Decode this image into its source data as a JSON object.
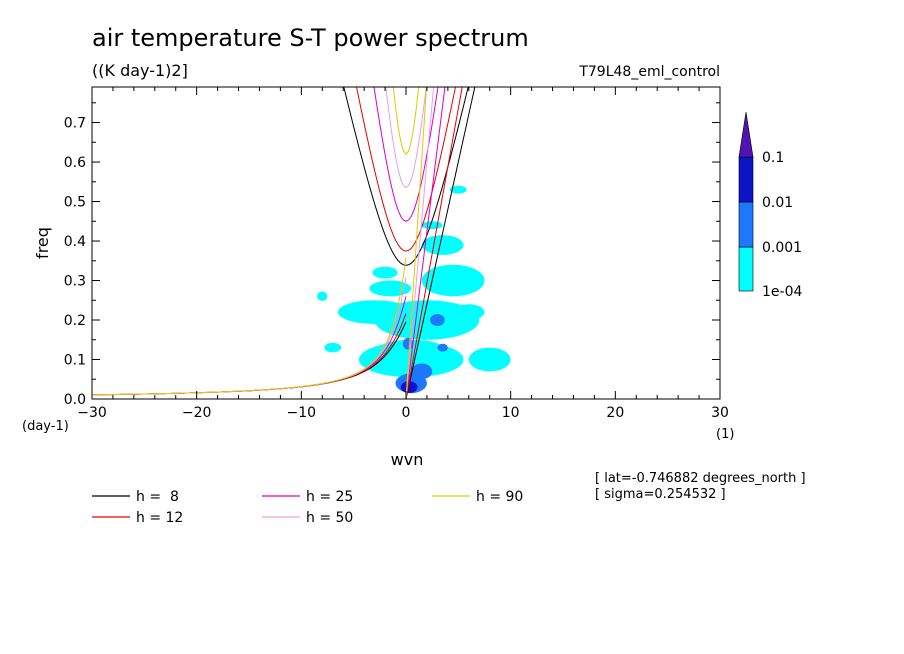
{
  "chart_data": {
    "type": "contour",
    "title": "air temperature S-T power spectrum",
    "units": "((K day-1)2]",
    "experiment": "T79L48_eml_control",
    "xlabel": "wvn",
    "ylabel": "freq",
    "xunit": "(1)",
    "yunit": "(day-1)",
    "xlim": [
      -30,
      30
    ],
    "ylim": [
      0,
      0.79
    ],
    "xticks": [
      "-30",
      "-20",
      "-10",
      "0",
      "10",
      "20",
      "30"
    ],
    "yticks": [
      "0.0",
      "0.1",
      "0.2",
      "0.3",
      "0.4",
      "0.5",
      "0.6",
      "0.7"
    ],
    "info": [
      "[ lat=-0.746882 degrees_north ]",
      "[ sigma=0.254532 ]"
    ],
    "colorbar": {
      "levels": [
        "1e-04",
        "0.001",
        "0.01",
        "0.1"
      ],
      "colors": [
        "#00ffff",
        "#1e78ff",
        "#0a14c8",
        "#5014b4"
      ]
    },
    "dispersion_curves": [
      {
        "label": "h =  8",
        "h": 8,
        "color": "#000000"
      },
      {
        "label": "h = 12",
        "h": 12,
        "color": "#e60000"
      },
      {
        "label": "h = 25",
        "h": 25,
        "color": "#dc00c8"
      },
      {
        "label": "h = 50",
        "h": 50,
        "color": "#e6a0e6"
      },
      {
        "label": "h = 90",
        "h": 90,
        "color": "#e6c800"
      }
    ],
    "contour_patches": [
      {
        "level": "1e-04",
        "cx": 0.5,
        "cy": 0.1,
        "rx": 5.0,
        "ry": 0.045
      },
      {
        "level": "1e-04",
        "cx": 2.0,
        "cy": 0.2,
        "rx": 5.0,
        "ry": 0.05
      },
      {
        "level": "1e-04",
        "cx": -3.0,
        "cy": 0.22,
        "rx": 3.5,
        "ry": 0.03
      },
      {
        "level": "1e-04",
        "cx": 4.5,
        "cy": 0.3,
        "rx": 3.0,
        "ry": 0.04
      },
      {
        "level": "1e-04",
        "cx": -1.5,
        "cy": 0.28,
        "rx": 2.0,
        "ry": 0.02
      },
      {
        "level": "1e-04",
        "cx": 3.5,
        "cy": 0.39,
        "rx": 2.0,
        "ry": 0.025
      },
      {
        "level": "1e-04",
        "cx": 8.0,
        "cy": 0.1,
        "rx": 2.0,
        "ry": 0.03
      },
      {
        "level": "1e-04",
        "cx": 0.5,
        "cy": 0.13,
        "rx": 3.0,
        "ry": 0.02
      },
      {
        "level": "1e-04",
        "cx": 2.5,
        "cy": 0.44,
        "rx": 1.0,
        "ry": 0.01
      },
      {
        "level": "1e-04",
        "cx": 5.0,
        "cy": 0.53,
        "rx": 0.8,
        "ry": 0.01
      },
      {
        "level": "1e-04",
        "cx": -8.0,
        "cy": 0.26,
        "rx": 0.5,
        "ry": 0.012
      },
      {
        "level": "1e-04",
        "cx": -7.0,
        "cy": 0.13,
        "rx": 0.8,
        "ry": 0.012
      },
      {
        "level": "1e-04",
        "cx": 6.0,
        "cy": 0.22,
        "rx": 1.5,
        "ry": 0.02
      },
      {
        "level": "1e-04",
        "cx": -2.0,
        "cy": 0.32,
        "rx": 1.2,
        "ry": 0.015
      },
      {
        "level": "0.001",
        "cx": 0.5,
        "cy": 0.04,
        "rx": 1.5,
        "ry": 0.025
      },
      {
        "level": "0.001",
        "cx": 1.5,
        "cy": 0.07,
        "rx": 1.0,
        "ry": 0.02
      },
      {
        "level": "0.001",
        "cx": 3.0,
        "cy": 0.2,
        "rx": 0.7,
        "ry": 0.015
      },
      {
        "level": "0.001",
        "cx": 0.2,
        "cy": 0.14,
        "rx": 0.5,
        "ry": 0.015
      },
      {
        "level": "0.001",
        "cx": 3.5,
        "cy": 0.13,
        "rx": 0.5,
        "ry": 0.01
      },
      {
        "level": "0.01",
        "cx": 0.3,
        "cy": 0.03,
        "rx": 0.8,
        "ry": 0.015
      }
    ]
  }
}
